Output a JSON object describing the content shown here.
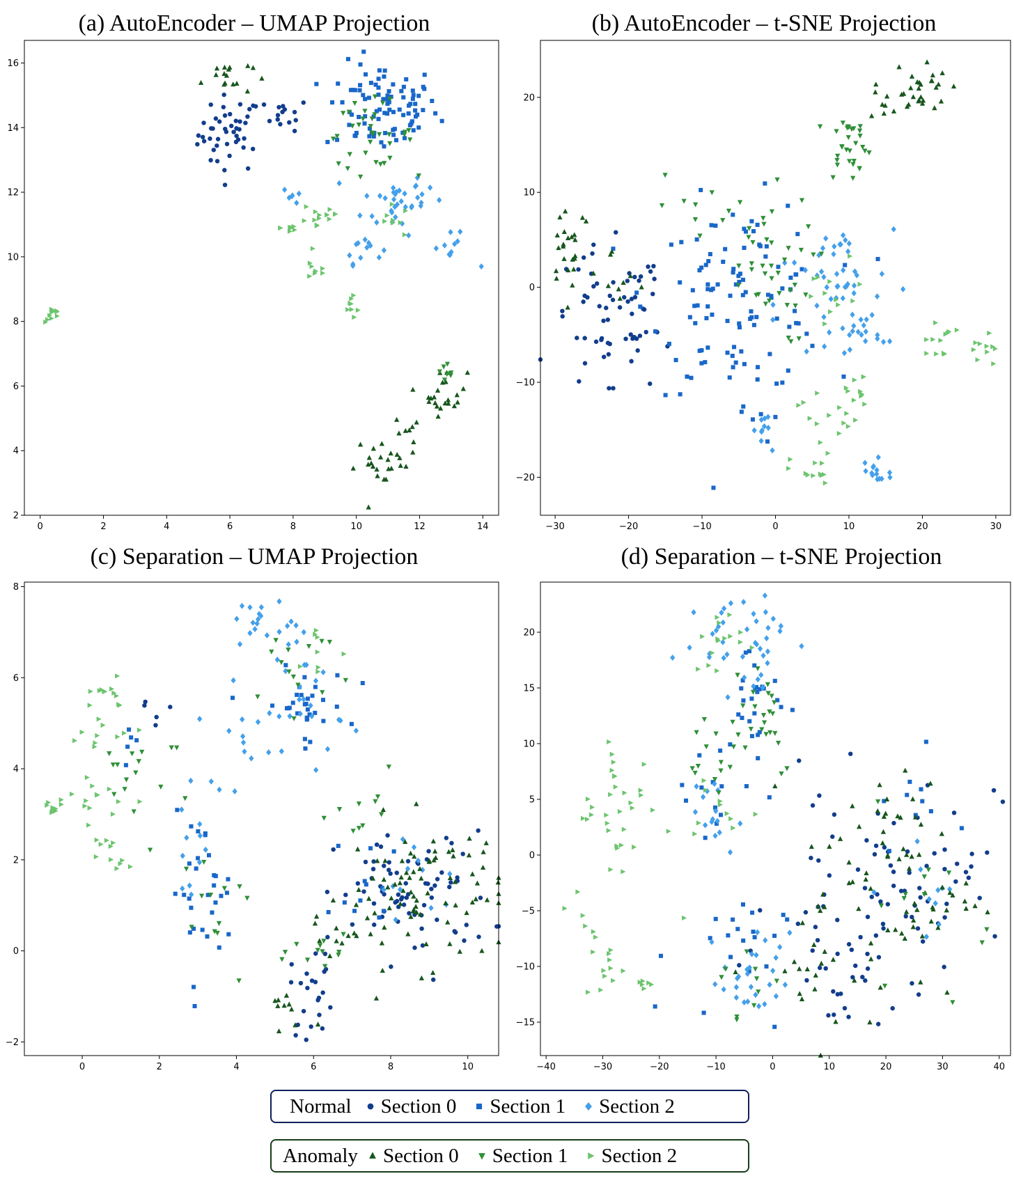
{
  "colors": {
    "normal_s0": "#123d8c",
    "normal_s1": "#1967c9",
    "normal_s2": "#44a0ea",
    "anomaly_s0": "#17561d",
    "anomaly_s1": "#2f8f37",
    "anomaly_s2": "#6cc46f"
  },
  "legend": {
    "normal": {
      "title": "Normal",
      "items": [
        {
          "label": "Section 0",
          "marker": "circle",
          "color_key": "normal_s0"
        },
        {
          "label": "Section 1",
          "marker": "square",
          "color_key": "normal_s1"
        },
        {
          "label": "Section 2",
          "marker": "diamond",
          "color_key": "normal_s2"
        }
      ]
    },
    "anomaly": {
      "title": "Anomaly",
      "items": [
        {
          "label": "Section 0",
          "marker": "triangle-up",
          "color_key": "anomaly_s0"
        },
        {
          "label": "Section 1",
          "marker": "triangle-down",
          "color_key": "anomaly_s1"
        },
        {
          "label": "Section 2",
          "marker": "triangle-right",
          "color_key": "anomaly_s2"
        }
      ]
    }
  },
  "chart_data": [
    {
      "type": "scatter",
      "title": "(a) AutoEncoder – UMAP Projection",
      "xlim": [
        -0.5,
        14.5
      ],
      "ylim": [
        2,
        16.7
      ],
      "xticks": [
        0,
        2,
        4,
        6,
        8,
        10,
        12,
        14
      ],
      "yticks": [
        2,
        4,
        6,
        8,
        10,
        12,
        14,
        16
      ],
      "groups": [
        {
          "key": "normal_s0",
          "clusters": [
            [
              6.0,
              13.8,
              0.5,
              0.6,
              45
            ],
            [
              7.8,
              14.4,
              0.35,
              0.25,
              14
            ]
          ]
        },
        {
          "key": "normal_s1",
          "clusters": [
            [
              10.8,
              14.6,
              0.9,
              0.7,
              95
            ]
          ]
        },
        {
          "key": "normal_s2",
          "clusters": [
            [
              11.2,
              11.7,
              0.5,
              0.5,
              25
            ],
            [
              10.2,
              10.3,
              0.3,
              0.25,
              12
            ],
            [
              13.0,
              10.2,
              0.35,
              0.25,
              10
            ],
            [
              8.0,
              11.9,
              0.15,
              0.15,
              6
            ],
            [
              11.9,
              11.9,
              0.4,
              0.35,
              10
            ]
          ]
        },
        {
          "key": "anomaly_s0",
          "clusters": [
            [
              5.9,
              15.6,
              0.4,
              0.3,
              16
            ],
            [
              12.8,
              5.8,
              0.35,
              0.35,
              22
            ],
            [
              10.9,
              3.6,
              0.5,
              0.4,
              24
            ],
            [
              11.8,
              4.7,
              0.3,
              0.2,
              6
            ]
          ]
        },
        {
          "key": "anomaly_s1",
          "clusters": [
            [
              10.4,
              13.8,
              0.7,
              0.5,
              35
            ],
            [
              12.8,
              6.2,
              0.3,
              0.25,
              8
            ]
          ]
        },
        {
          "key": "anomaly_s2",
          "clusters": [
            [
              0.4,
              8.2,
              0.12,
              0.12,
              10
            ],
            [
              8.9,
              11.3,
              0.35,
              0.3,
              14
            ],
            [
              7.9,
              10.9,
              0.15,
              0.1,
              8
            ],
            [
              8.7,
              9.6,
              0.2,
              0.2,
              8
            ],
            [
              9.9,
              8.5,
              0.15,
              0.25,
              8
            ],
            [
              11.2,
              11.1,
              0.35,
              0.25,
              8
            ]
          ]
        }
      ]
    },
    {
      "type": "scatter",
      "title": "(b) AutoEncoder – t-SNE Projection",
      "xlim": [
        -32,
        32
      ],
      "ylim": [
        -24,
        26
      ],
      "xticks": [
        -30,
        -20,
        -10,
        0,
        10,
        20,
        30
      ],
      "yticks": [
        -20,
        -10,
        0,
        10,
        20
      ],
      "groups": [
        {
          "key": "normal_s0",
          "clusters": [
            [
              -23,
              -4,
              4,
              4,
              55
            ],
            [
              -17,
              -3,
              2.5,
              3,
              10
            ]
          ]
        },
        {
          "key": "normal_s1",
          "clusters": [
            [
              -5,
              -1,
              6,
              5,
              110
            ],
            [
              -2,
              -14,
              1.5,
              1,
              5
            ]
          ]
        },
        {
          "key": "normal_s2",
          "clusters": [
            [
              8,
              -2,
              4,
              4,
              40
            ],
            [
              -1.5,
              -15,
              1.5,
              1.2,
              10
            ],
            [
              13.5,
              -19.5,
              1.2,
              1.2,
              14
            ],
            [
              10,
              3,
              2,
              2,
              12
            ],
            [
              11.5,
              -5,
              1.5,
              1.2,
              10
            ]
          ]
        },
        {
          "key": "anomaly_s0",
          "clusters": [
            [
              -28,
              5,
              1.5,
              2.5,
              22
            ],
            [
              -22,
              0,
              3,
              2,
              10
            ],
            [
              19.5,
              21,
              2,
              1.5,
              30
            ],
            [
              15,
              19.5,
              1,
              1,
              5
            ]
          ]
        },
        {
          "key": "anomaly_s1",
          "clusters": [
            [
              10,
              15,
              1.5,
              1.8,
              30
            ],
            [
              -2,
              2,
              3.5,
              4,
              40
            ],
            [
              -10,
              8,
              3,
              2,
              8
            ]
          ]
        },
        {
          "key": "anomaly_s2",
          "clusters": [
            [
              22,
              -5.5,
              1.2,
              1,
              12
            ],
            [
              28.5,
              -6.5,
              0.8,
              1.2,
              10
            ],
            [
              7,
              -13,
              2,
              1.5,
              14
            ],
            [
              5,
              -19.5,
              1.5,
              1,
              12
            ],
            [
              11,
              -11,
              2,
              1.5,
              10
            ],
            [
              8,
              -1,
              2.5,
              2,
              12
            ]
          ]
        }
      ]
    },
    {
      "type": "scatter",
      "title": "(c) Separation – UMAP Projection",
      "xlim": [
        -1.5,
        10.8
      ],
      "ylim": [
        -2.3,
        8.1
      ],
      "xticks": [
        0,
        2,
        4,
        6,
        8,
        10
      ],
      "yticks": [
        -2,
        0,
        2,
        4,
        6,
        8
      ],
      "groups": [
        {
          "key": "normal_s0",
          "clusters": [
            [
              8.6,
              1.2,
              1.0,
              0.7,
              75
            ],
            [
              6.0,
              -0.9,
              0.3,
              0.5,
              22
            ],
            [
              1.8,
              5.3,
              0.3,
              0.2,
              5
            ]
          ]
        },
        {
          "key": "normal_s1",
          "clusters": [
            [
              5.7,
              5.4,
              0.6,
              0.4,
              32
            ],
            [
              3.1,
              1.3,
              0.4,
              0.8,
              30
            ],
            [
              7.5,
              1.2,
              0.5,
              0.7,
              12
            ],
            [
              1.4,
              4.5,
              0.3,
              0.3,
              5
            ]
          ]
        },
        {
          "key": "normal_s2",
          "clusters": [
            [
              4.5,
              7.3,
              0.3,
              0.2,
              12
            ],
            [
              5.8,
              5.8,
              0.5,
              0.9,
              30
            ],
            [
              4.1,
              4.6,
              0.6,
              0.5,
              14
            ],
            [
              2.7,
              2.0,
              0.3,
              0.5,
              10
            ],
            [
              8.8,
              1.5,
              0.8,
              0.5,
              12
            ]
          ]
        },
        {
          "key": "anomaly_s0",
          "clusters": [
            [
              8.9,
              1.3,
              1.0,
              0.8,
              80
            ],
            [
              5.3,
              -1.4,
              0.3,
              0.3,
              10
            ],
            [
              6.6,
              0.3,
              0.5,
              0.4,
              12
            ]
          ]
        },
        {
          "key": "anomaly_s1",
          "clusters": [
            [
              5.5,
              6.3,
              0.8,
              0.5,
              14
            ],
            [
              1.5,
              4.2,
              0.7,
              0.8,
              16
            ],
            [
              3.4,
              0.6,
              0.6,
              0.5,
              12
            ],
            [
              6.5,
              0.0,
              0.5,
              0.3,
              12
            ],
            [
              7.3,
              2.9,
              0.4,
              0.5,
              10
            ]
          ]
        },
        {
          "key": "anomaly_s2",
          "clusters": [
            [
              0.6,
              5.6,
              0.35,
              0.15,
              12
            ],
            [
              -0.8,
              3.1,
              0.15,
              0.12,
              10
            ],
            [
              0.3,
              3.4,
              0.4,
              0.3,
              12
            ],
            [
              0.7,
              2.1,
              0.3,
              0.35,
              12
            ],
            [
              0.6,
              4.7,
              0.6,
              0.3,
              10
            ],
            [
              6.1,
              6.6,
              0.3,
              0.4,
              8
            ]
          ]
        }
      ]
    },
    {
      "type": "scatter",
      "title": "(d) Separation – t-SNE Projection",
      "xlim": [
        -41,
        42
      ],
      "ylim": [
        -18,
        24.5
      ],
      "xticks": [
        -40,
        -30,
        -20,
        -10,
        0,
        10,
        20,
        30,
        40
      ],
      "yticks": [
        -15,
        -10,
        -5,
        0,
        5,
        10,
        15,
        20
      ],
      "groups": [
        {
          "key": "normal_s0",
          "clusters": [
            [
              18,
              -4,
              9,
              5,
              65
            ],
            [
              12,
              -10,
              2.5,
              3,
              15
            ],
            [
              28,
              0,
              6,
              4,
              20
            ]
          ]
        },
        {
          "key": "normal_s1",
          "clusters": [
            [
              -3,
              14.5,
              3,
              2.5,
              25
            ],
            [
              -8,
              -9,
              5,
              3,
              20
            ],
            [
              -12,
              6,
              4,
              3,
              15
            ],
            [
              25,
              5,
              3,
              2.5,
              10
            ]
          ]
        },
        {
          "key": "normal_s2",
          "clusters": [
            [
              -8,
              19.5,
              5,
              1.8,
              30
            ],
            [
              -3,
              -11,
              3,
              2,
              28
            ],
            [
              -12,
              3,
              3,
              2,
              15
            ],
            [
              -3,
              17,
              3,
              2,
              10
            ],
            [
              30,
              -3,
              5,
              2,
              10
            ]
          ]
        },
        {
          "key": "anomaly_s0",
          "clusters": [
            [
              20,
              -3,
              8,
              5,
              65
            ],
            [
              10,
              -12,
              3,
              3,
              12
            ],
            [
              22,
              3,
              3,
              3,
              10
            ]
          ]
        },
        {
          "key": "anomaly_s1",
          "clusters": [
            [
              -3,
              13,
              4,
              3,
              25
            ],
            [
              -12,
              9,
              3,
              3,
              12
            ],
            [
              -3,
              -12,
              3,
              2,
              10
            ],
            [
              30,
              -3,
              6,
              4,
              12
            ]
          ]
        },
        {
          "key": "anomaly_s2",
          "clusters": [
            [
              -27,
              3,
              4,
              4,
              35
            ],
            [
              -30,
              -9,
              2,
              2,
              15
            ],
            [
              -23,
              -11.5,
              1,
              0.3,
              6
            ],
            [
              -8,
              19,
              3,
              1.5,
              15
            ],
            [
              -10,
              4,
              4,
              2,
              10
            ]
          ]
        }
      ]
    }
  ]
}
